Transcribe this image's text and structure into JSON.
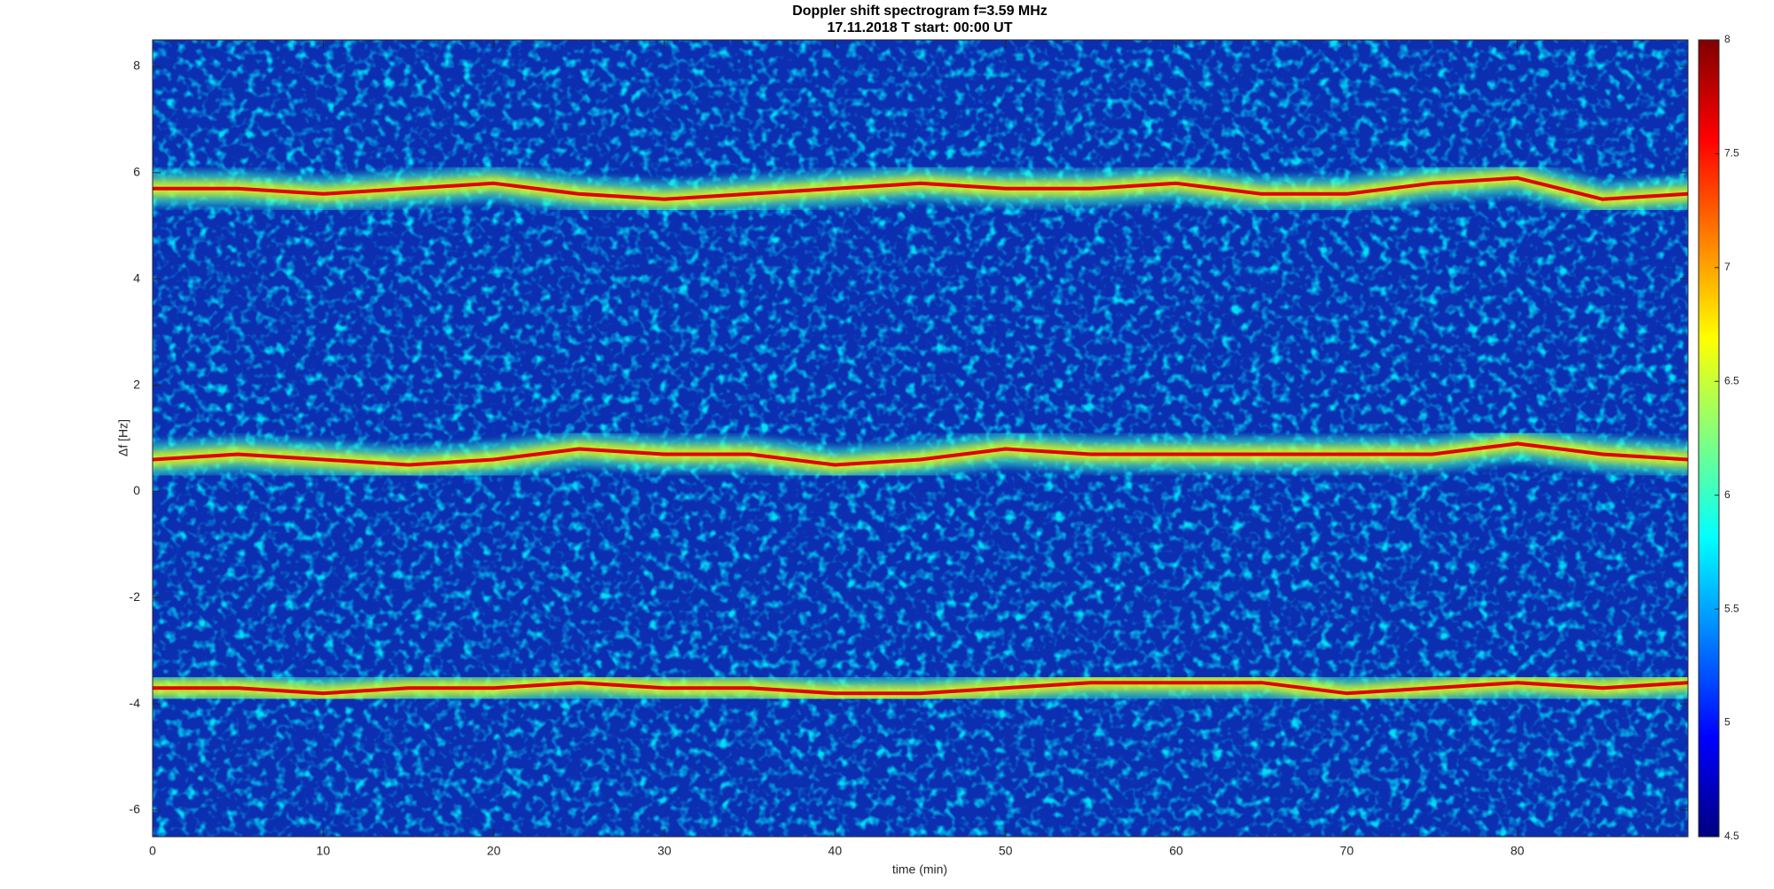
{
  "chart_data": {
    "type": "spectrogram",
    "title": "Doppler shift spectrogram f=3.59 MHz",
    "subtitle": "17.11.2018    T start: 00:00 UT",
    "x_label": "time (min)",
    "y_label": "Δf [Hz]",
    "xlim": [
      0,
      90
    ],
    "xticks": [
      0,
      10,
      20,
      30,
      40,
      50,
      60,
      70,
      80
    ],
    "ylim": [
      -6.5,
      8.5
    ],
    "yticks": [
      -6,
      -4,
      -2,
      0,
      2,
      4,
      6,
      8
    ],
    "clim": [
      4.5,
      8
    ],
    "cticks": [
      4.5,
      5,
      5.5,
      6,
      6.5,
      7,
      7.5,
      8
    ],
    "colormap": "jet",
    "x": [
      0,
      5,
      10,
      15,
      20,
      25,
      30,
      35,
      40,
      45,
      50,
      55,
      60,
      65,
      70,
      75,
      80,
      85,
      90
    ],
    "series": [
      {
        "color": "#e00000",
        "values": [
          5.7,
          5.7,
          5.6,
          5.7,
          5.8,
          5.6,
          5.5,
          5.6,
          5.7,
          5.8,
          5.7,
          5.7,
          5.8,
          5.6,
          5.6,
          5.8,
          5.9,
          5.5,
          5.6
        ]
      },
      {
        "color": "#e00000",
        "values": [
          0.6,
          0.7,
          0.6,
          0.5,
          0.6,
          0.8,
          0.7,
          0.7,
          0.5,
          0.6,
          0.8,
          0.7,
          0.7,
          0.7,
          0.7,
          0.7,
          0.9,
          0.7,
          0.6
        ]
      },
      {
        "color": "#e00000",
        "values": [
          -3.7,
          -3.7,
          -3.8,
          -3.7,
          -3.7,
          -3.6,
          -3.7,
          -3.7,
          -3.8,
          -3.8,
          -3.7,
          -3.6,
          -3.6,
          -3.6,
          -3.8,
          -3.7,
          -3.6,
          -3.7,
          -3.6
        ]
      }
    ]
  }
}
